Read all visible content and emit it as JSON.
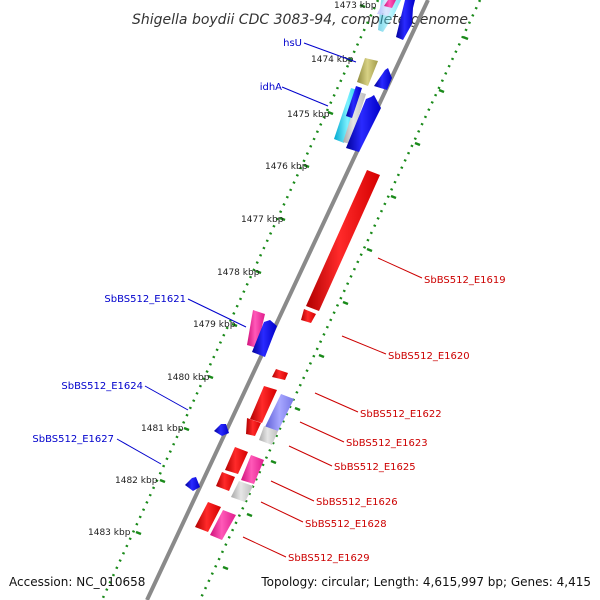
{
  "title": "Shigella boydii CDC 3083-94, complete genome",
  "footer": {
    "accession": "Accession: NC_010658",
    "topology": "Topology: circular; Length: 4,615,997 bp; Genes: 4,415"
  },
  "ruler": {
    "ticks": [
      "1473 kbp",
      "1474 kbp",
      "1475 kbp",
      "1476 kbp",
      "1477 kbp",
      "1478 kbp",
      "1479 kbp",
      "1480 kbp",
      "1481 kbp",
      "1482 kbp",
      "1483 kbp"
    ]
  },
  "colors": {
    "backbone": "#8a8a8a",
    "forward_label": "#0000cc",
    "reverse_label": "#cc0000",
    "track_dots": "#1a8a1a"
  },
  "labels": {
    "hsU": "hsU",
    "idhA": "idhA",
    "E1619": "SbBS512_E1619",
    "E1620": "SbBS512_E1620",
    "E1621": "SbBS512_E1621",
    "E1622": "SbBS512_E1622",
    "E1623": "SbBS512_E1623",
    "E1624": "SbBS512_E1624",
    "E1625": "SbBS512_E1625",
    "E1626": "SbBS512_E1626",
    "E1627": "SbBS512_E1627",
    "E1628": "SbBS512_E1628",
    "E1629": "SbBS512_E1629"
  }
}
